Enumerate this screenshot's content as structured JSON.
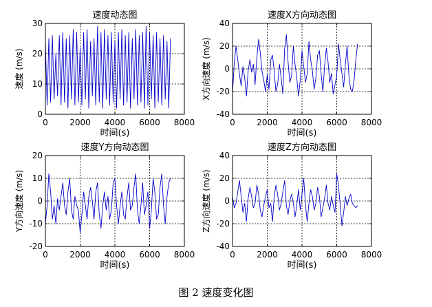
{
  "figure": {
    "caption": "图 2  速度变化图"
  },
  "style": {
    "line_color": "#0000cc",
    "axis_color": "#000000",
    "grid_color": "#000000",
    "background": "#ffffff"
  },
  "chart_data": [
    {
      "type": "line",
      "title": "速度动态图",
      "xlabel": "时间(s)",
      "ylabel": "速度 (m/s)",
      "xlim": [
        0,
        8000
      ],
      "ylim": [
        0,
        30
      ],
      "xticks": [
        0,
        2000,
        4000,
        6000,
        8000
      ],
      "yticks": [
        0,
        10,
        20,
        30
      ],
      "grid": true,
      "series": [
        {
          "x": [
            0,
            100,
            200,
            300,
            400,
            500,
            600,
            700,
            800,
            900,
            1000,
            1100,
            1200,
            1300,
            1400,
            1500,
            1600,
            1700,
            1800,
            1900,
            2000,
            2100,
            2200,
            2300,
            2400,
            2500,
            2600,
            2700,
            2800,
            2900,
            3000,
            3100,
            3200,
            3300,
            3400,
            3500,
            3600,
            3700,
            3800,
            3900,
            4000,
            4100,
            4200,
            4300,
            4400,
            4500,
            4600,
            4700,
            4800,
            4900,
            5000,
            5100,
            5200,
            5300,
            5400,
            5500,
            5600,
            5700,
            5800,
            5900,
            6000,
            6100,
            6200,
            6300,
            6400,
            6500,
            6600,
            6700,
            6800,
            6900,
            7000,
            7100,
            7200
          ],
          "y": [
            24,
            3,
            25,
            4,
            26,
            5,
            20,
            6,
            26,
            3,
            27,
            4,
            25,
            2,
            26,
            5,
            28,
            3,
            27,
            4,
            22,
            3,
            27,
            5,
            28,
            2,
            24,
            6,
            25,
            3,
            29,
            4,
            27,
            2,
            28,
            5,
            26,
            3,
            27,
            4,
            24,
            2,
            27,
            5,
            28,
            3,
            26,
            4,
            27,
            2,
            25,
            5,
            28,
            3,
            26,
            4,
            27,
            2,
            29,
            3,
            27,
            5,
            26,
            2,
            27,
            4,
            25,
            3,
            26,
            5,
            24,
            2,
            25
          ]
        }
      ]
    },
    {
      "type": "line",
      "title": "速度X方向动态图",
      "xlabel": "时间(s)",
      "ylabel": "X方向速度 (m/s)",
      "xlim": [
        0,
        8000
      ],
      "ylim": [
        -40,
        40
      ],
      "xticks": [
        0,
        2000,
        4000,
        6000,
        8000
      ],
      "yticks": [
        -40,
        -20,
        0,
        20,
        40
      ],
      "grid": true,
      "series": [
        {
          "x": [
            0,
            100,
            200,
            300,
            400,
            500,
            600,
            700,
            800,
            900,
            1000,
            1100,
            1200,
            1300,
            1400,
            1500,
            1600,
            1700,
            1800,
            1900,
            2000,
            2100,
            2200,
            2300,
            2400,
            2500,
            2600,
            2700,
            2800,
            2900,
            3000,
            3100,
            3200,
            3300,
            3400,
            3500,
            3600,
            3700,
            3800,
            3900,
            4000,
            4100,
            4200,
            4300,
            4400,
            4500,
            4600,
            4700,
            4800,
            4900,
            5000,
            5100,
            5200,
            5300,
            5400,
            5500,
            5600,
            5700,
            5800,
            5900,
            6000,
            6100,
            6200,
            6300,
            6400,
            6500,
            6600,
            6700,
            6800,
            6900,
            7000,
            7100,
            7200
          ],
          "y": [
            -22,
            5,
            20,
            8,
            -5,
            -15,
            2,
            -8,
            -24,
            -2,
            8,
            -3,
            4,
            -14,
            10,
            26,
            14,
            -2,
            -10,
            -20,
            -5,
            -18,
            8,
            12,
            -2,
            -20,
            -14,
            4,
            -8,
            -22,
            18,
            30,
            6,
            -12,
            -6,
            20,
            4,
            -8,
            -24,
            -10,
            16,
            2,
            -12,
            -4,
            24,
            8,
            -2,
            -18,
            -8,
            12,
            16,
            -4,
            -20,
            2,
            18,
            6,
            -12,
            -4,
            -22,
            -14,
            -6,
            22,
            8,
            -4,
            -16,
            4,
            20,
            -6,
            -18,
            -20,
            -10,
            8,
            22
          ]
        }
      ]
    },
    {
      "type": "line",
      "title": "速度Y方向动态图",
      "xlabel": "时间(s)",
      "ylabel": "Y方向速度 (m/s)",
      "xlim": [
        0,
        8000
      ],
      "ylim": [
        -20,
        20
      ],
      "xticks": [
        0,
        2000,
        4000,
        6000,
        8000
      ],
      "yticks": [
        -20,
        -10,
        0,
        10,
        20
      ],
      "grid": true,
      "series": [
        {
          "x": [
            0,
            100,
            200,
            300,
            400,
            500,
            600,
            700,
            800,
            900,
            1000,
            1100,
            1200,
            1300,
            1400,
            1500,
            1600,
            1700,
            1800,
            1900,
            2000,
            2100,
            2200,
            2300,
            2400,
            2500,
            2600,
            2700,
            2800,
            2900,
            3000,
            3100,
            3200,
            3300,
            3400,
            3500,
            3600,
            3700,
            3800,
            3900,
            4000,
            4100,
            4200,
            4300,
            4400,
            4500,
            4600,
            4700,
            4800,
            4900,
            5000,
            5100,
            5200,
            5300,
            5400,
            5500,
            5600,
            5700,
            5800,
            5900,
            6000,
            6100,
            6200,
            6300,
            6400,
            6500,
            6600,
            6700,
            6800,
            6900,
            7000,
            7100,
            7200
          ],
          "y": [
            -10,
            -2,
            12,
            4,
            -8,
            -2,
            -10,
            1,
            -4,
            2,
            8,
            -2,
            -6,
            4,
            10,
            -4,
            -8,
            2,
            -2,
            -4,
            -14,
            -6,
            4,
            -2,
            -8,
            2,
            6,
            0,
            -8,
            4,
            8,
            -6,
            -12,
            -2,
            4,
            -4,
            2,
            -8,
            -4,
            8,
            10,
            -2,
            -10,
            -2,
            4,
            -6,
            -8,
            2,
            8,
            -4,
            -2,
            6,
            12,
            -4,
            -10,
            -2,
            8,
            -6,
            -2,
            4,
            -12,
            -4,
            10,
            4,
            -8,
            -6,
            6,
            12,
            -2,
            -10,
            2,
            8,
            10
          ]
        }
      ]
    },
    {
      "type": "line",
      "title": "速度Z方向动态图",
      "xlabel": "时间(s)",
      "ylabel": "Z方向速度 (m/s)",
      "xlim": [
        0,
        8000
      ],
      "ylim": [
        -40,
        40
      ],
      "xticks": [
        0,
        2000,
        4000,
        6000,
        8000
      ],
      "yticks": [
        -40,
        -20,
        0,
        20,
        40
      ],
      "grid": true,
      "series": [
        {
          "x": [
            0,
            100,
            200,
            300,
            400,
            500,
            600,
            700,
            800,
            900,
            1000,
            1100,
            1200,
            1300,
            1400,
            1500,
            1600,
            1700,
            1800,
            1900,
            2000,
            2100,
            2200,
            2300,
            2400,
            2500,
            2600,
            2700,
            2800,
            2900,
            3000,
            3100,
            3200,
            3300,
            3400,
            3500,
            3600,
            3700,
            3800,
            3900,
            4000,
            4100,
            4200,
            4300,
            4400,
            4500,
            4600,
            4700,
            4800,
            4900,
            5000,
            5100,
            5200,
            5300,
            5400,
            5500,
            5600,
            5700,
            5800,
            5900,
            6000,
            6100,
            6200,
            6300,
            6400,
            6500,
            6600,
            6700,
            6800,
            6900,
            7000,
            7100,
            7200
          ],
          "y": [
            4,
            -6,
            -2,
            8,
            18,
            4,
            -10,
            -2,
            -18,
            2,
            12,
            4,
            -6,
            -2,
            14,
            6,
            -8,
            -14,
            -4,
            4,
            10,
            -6,
            -2,
            -18,
            4,
            14,
            6,
            -8,
            -2,
            8,
            18,
            -4,
            -12,
            0,
            6,
            -2,
            -14,
            -4,
            10,
            -8,
            6,
            20,
            -4,
            -18,
            -2,
            10,
            4,
            -8,
            -2,
            12,
            4,
            -14,
            -6,
            2,
            14,
            -2,
            -8,
            4,
            -4,
            -10,
            24,
            14,
            -4,
            -22,
            -10,
            4,
            -4,
            2,
            6,
            -2,
            -4,
            -6,
            -4
          ]
        }
      ]
    }
  ]
}
